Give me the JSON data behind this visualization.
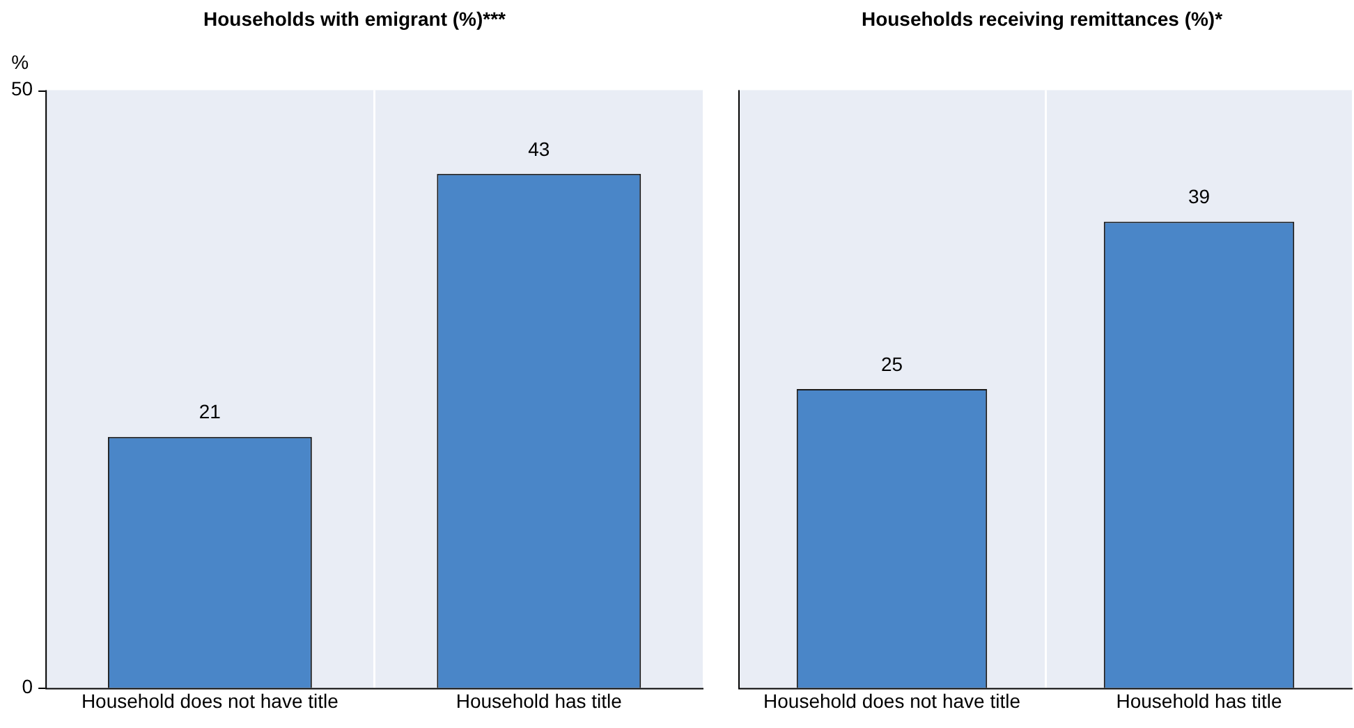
{
  "chart_data": [
    {
      "type": "bar",
      "title": "Households with emigrant (%)***",
      "ylabel": "%",
      "categories": [
        "Household does not have title",
        "Household has title"
      ],
      "values": [
        21,
        43
      ],
      "color": "#4a86c8",
      "ylim": [
        0,
        50
      ],
      "yticks": [
        0,
        50
      ],
      "grid": "x",
      "data_labels": true
    },
    {
      "type": "bar",
      "title": "Households receiving remittances (%)*",
      "categories": [
        "Household does not have title",
        "Household has title"
      ],
      "values": [
        25,
        39
      ],
      "color": "#4a86c8",
      "ylim": [
        0,
        50
      ],
      "grid": "x",
      "data_labels": true,
      "tick_labels": "x"
    }
  ]
}
